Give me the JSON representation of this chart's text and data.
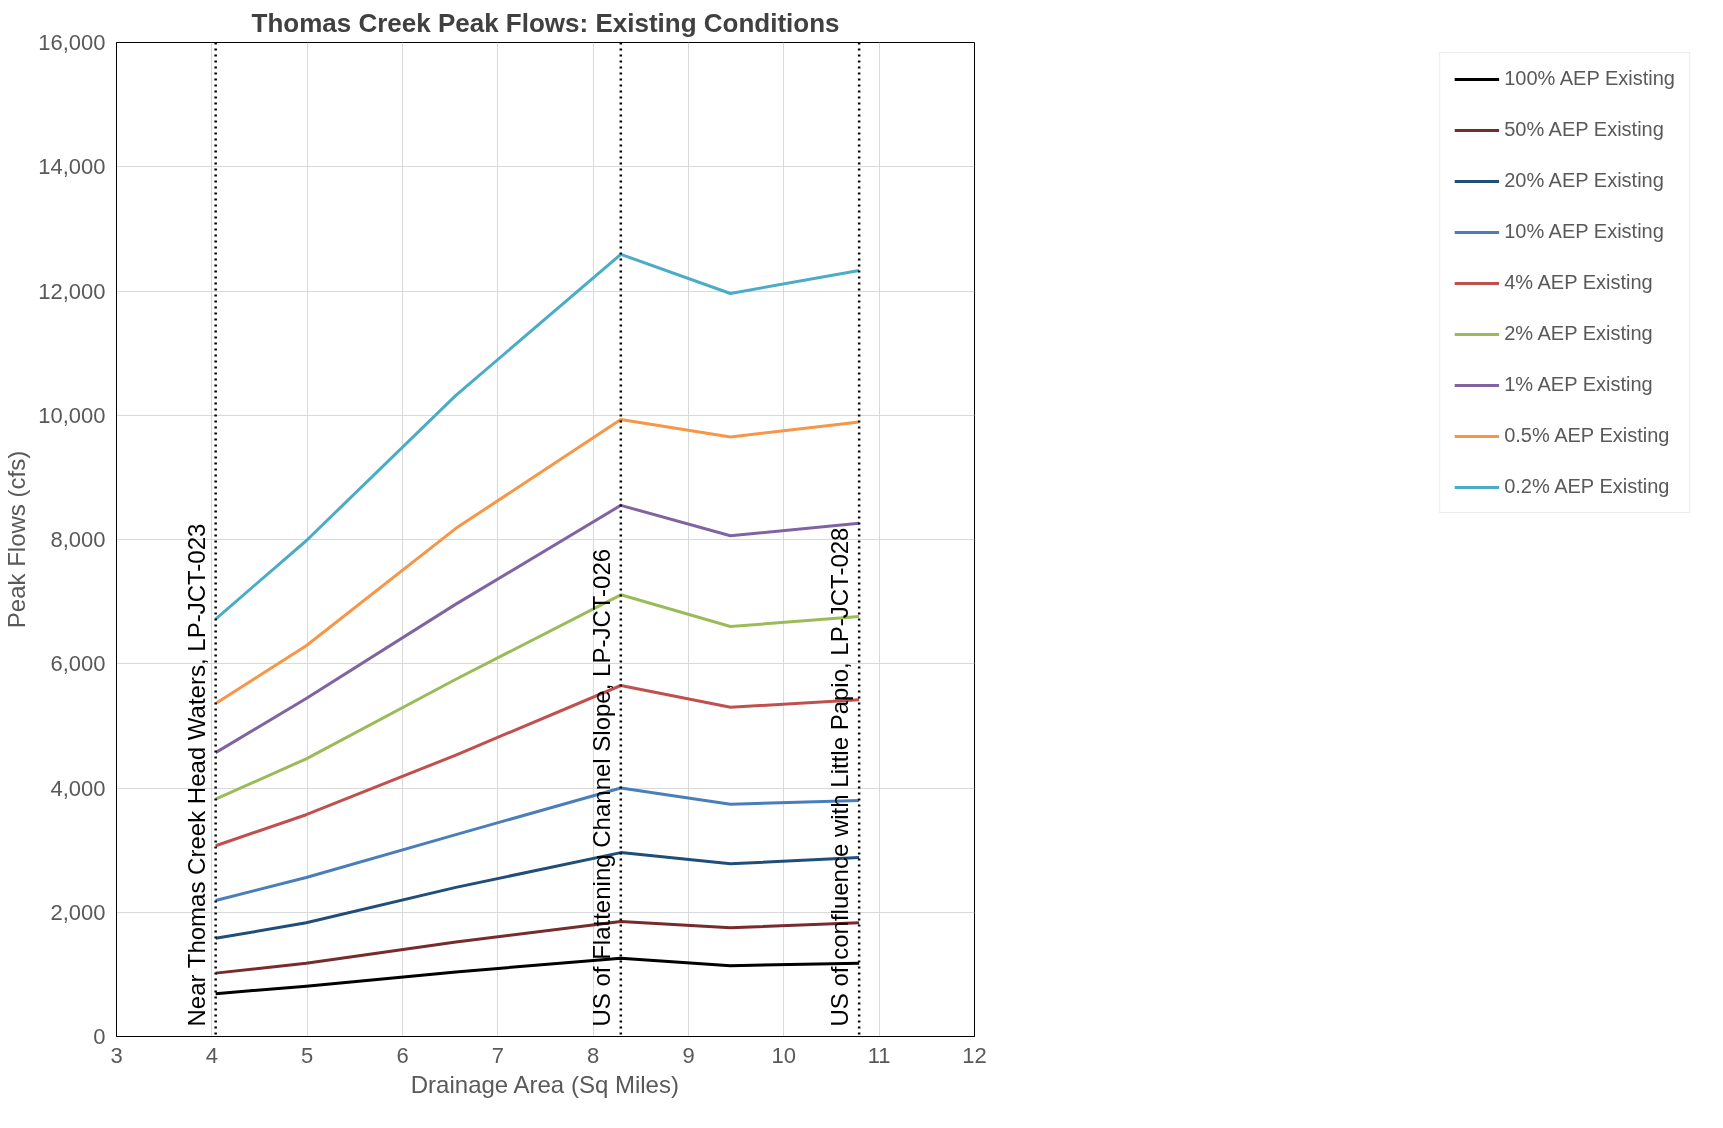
{
  "chart_data": {
    "type": "line",
    "title": "Thomas Creek Peak Flows: Existing Conditions",
    "xlabel": "Drainage Area (Sq Miles)",
    "ylabel": "Peak Flows (cfs)",
    "x": [
      10.79,
      9.44,
      8.29,
      6.56,
      4.99,
      4.04
    ],
    "xlim": [
      3,
      12
    ],
    "xticks": [
      3,
      4,
      5,
      6,
      7,
      8,
      9,
      10,
      11,
      12
    ],
    "ylim": [
      0,
      16000
    ],
    "yticks": [
      {
        "value": 0,
        "label": "0"
      },
      {
        "value": 2000,
        "label": "2,000"
      },
      {
        "value": 4000,
        "label": "4,000"
      },
      {
        "value": 6000,
        "label": "6,000"
      },
      {
        "value": 8000,
        "label": "8,000"
      },
      {
        "value": 10000,
        "label": "10,000"
      },
      {
        "value": 12000,
        "label": "12,000"
      },
      {
        "value": 14000,
        "label": "14,000"
      },
      {
        "value": 16000,
        "label": "16,000"
      }
    ],
    "grid": true,
    "legend": "right",
    "marker": "none",
    "line_style": "solid",
    "series": [
      {
        "name": "100% AEP Existing",
        "color": "#000000",
        "values": [
          1180,
          1140,
          1260,
          1040,
          810,
          690
        ]
      },
      {
        "name": "50% AEP Existing",
        "color": "#772b2b",
        "values": [
          1830,
          1750,
          1850,
          1520,
          1180,
          1020
        ]
      },
      {
        "name": "20% AEP Existing",
        "color": "#1f4e79",
        "values": [
          2880,
          2780,
          2960,
          2400,
          1830,
          1580
        ]
      },
      {
        "name": "10% AEP Existing",
        "color": "#4a7ebb",
        "values": [
          3800,
          3740,
          4000,
          3250,
          2560,
          2190
        ]
      },
      {
        "name": "4% AEP Existing",
        "color": "#c0504d",
        "values": [
          5420,
          5300,
          5650,
          4530,
          3570,
          3070
        ]
      },
      {
        "name": "2% AEP Existing",
        "color": "#9bbb59",
        "values": [
          6760,
          6600,
          7110,
          5750,
          4470,
          3820
        ]
      },
      {
        "name": "1% AEP Existing",
        "color": "#8064a2",
        "values": [
          8260,
          8060,
          8550,
          6960,
          5440,
          4570
        ]
      },
      {
        "name": "0.5% AEP Existing",
        "color": "#f79646",
        "values": [
          9890,
          9650,
          9930,
          8180,
          6290,
          5360
        ]
      },
      {
        "name": "0.2% AEP Existing",
        "color": "#4bacc6",
        "values": [
          12330,
          11960,
          12590,
          10320,
          7980,
          6720
        ]
      }
    ],
    "ref_lines": [
      {
        "axis": "x",
        "value": 10.79,
        "label": "US of confluence with Little Papio, LP-JCT-028",
        "color": "#000000",
        "line_style": "dotted"
      },
      {
        "axis": "x",
        "value": 8.29,
        "label": "US of Flattening Channel Slope, LP-JCT-026",
        "color": "#000000",
        "line_style": "dotted"
      },
      {
        "axis": "x",
        "value": 4.04,
        "label": "Near Thomas Creek Head Waters, LP-JCT-023",
        "color": "#000000",
        "line_style": "dotted"
      }
    ]
  }
}
